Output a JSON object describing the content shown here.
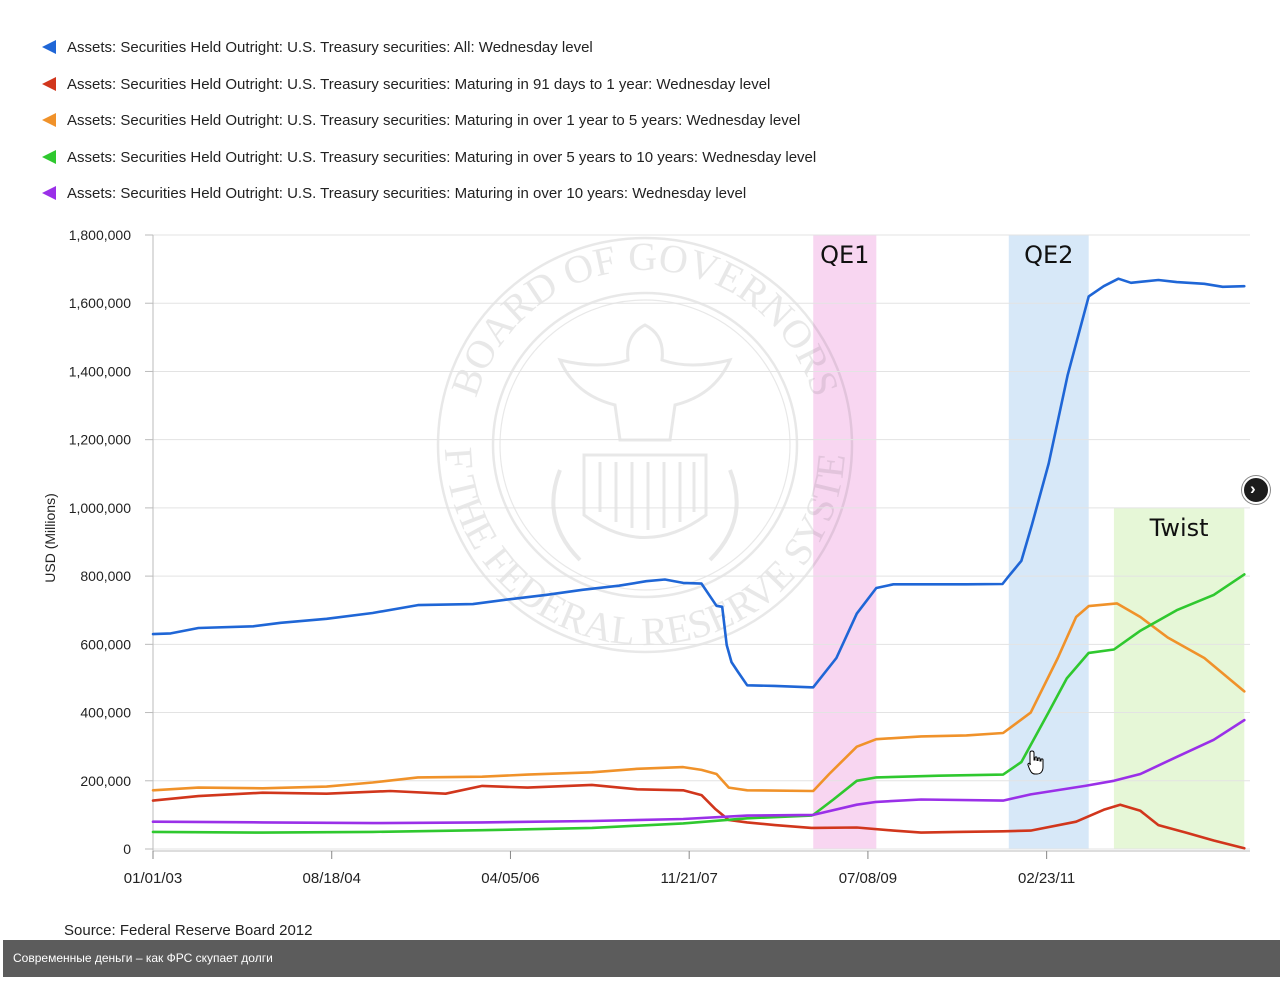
{
  "legend": [
    {
      "label": "Assets: Securities Held Outright: U.S. Treasury securities: All: Wednesday level",
      "color": "#1f66d6"
    },
    {
      "label": "Assets: Securities Held Outright: U.S. Treasury securities: Maturing in 91 days to 1 year: Wednesday level",
      "color": "#d1361c"
    },
    {
      "label": "Assets: Securities Held Outright: U.S. Treasury securities: Maturing in over 1 year to 5 years: Wednesday level",
      "color": "#f0922a"
    },
    {
      "label": "Assets: Securities Held Outright: U.S. Treasury securities: Maturing in over 5 years to 10 years: Wednesday level",
      "color": "#2fc82f"
    },
    {
      "label": "Assets: Securities Held Outright: U.S. Treasury securities: Maturing in over 10 years: Wednesday level",
      "color": "#9a30e8"
    }
  ],
  "source_text": "Source: Federal Reserve Board 2012",
  "caption": "Современные деньги – как ФРС скупает долги",
  "watermark": {
    "top_text": "BOARD OF GOVERNORS",
    "bottom_text": "OF THE FEDERAL RESERVE SYSTEM"
  },
  "chart_data": {
    "type": "line",
    "title": "",
    "xlabel": "",
    "ylabel": "USD (Millions)",
    "ylim": [
      0,
      1800000
    ],
    "xlim": [
      "2003-01-01",
      "2012-12-31"
    ],
    "grid": true,
    "legend_position": "top",
    "y_ticks": [
      {
        "value": 0,
        "label": "0"
      },
      {
        "value": 200000,
        "label": "200,000"
      },
      {
        "value": 400000,
        "label": "400,000"
      },
      {
        "value": 600000,
        "label": "600,000"
      },
      {
        "value": 800000,
        "label": "800,000"
      },
      {
        "value": 1000000,
        "label": "1,000,000"
      },
      {
        "value": 1200000,
        "label": "1,200,000"
      },
      {
        "value": 1400000,
        "label": "1,400,000"
      },
      {
        "value": 1600000,
        "label": "1,600,000"
      },
      {
        "value": 1800000,
        "label": "1,800,000"
      }
    ],
    "x_ticks": [
      {
        "date": "2003-01-01",
        "label": "01/01/03"
      },
      {
        "date": "2004-08-18",
        "label": "08/18/04"
      },
      {
        "date": "2006-04-05",
        "label": "04/05/06"
      },
      {
        "date": "2007-11-21",
        "label": "11/21/07"
      },
      {
        "date": "2009-07-08",
        "label": "07/08/09"
      },
      {
        "date": "2011-02-23",
        "label": "02/23/11"
      }
    ],
    "annotations": [
      {
        "label": "QE1",
        "start": "2009-01-07",
        "end": "2009-08-05",
        "y_top": 1800000,
        "color": "#f8d6f1"
      },
      {
        "label": "QE2",
        "start": "2010-10-20",
        "end": "2011-07-13",
        "y_top": 1800000,
        "color": "#d7e8f8"
      },
      {
        "label": "Twist",
        "start": "2011-10-05",
        "end": "2012-12-12",
        "y_top": 1000000,
        "color": "#e6f7d7"
      }
    ],
    "series": [
      {
        "name": "Assets: Securities Held Outright: U.S. Treasury securities: All: Wednesday level",
        "color": "#1f66d6",
        "points": [
          [
            "2003-01-01",
            630000
          ],
          [
            "2003-03-01",
            632000
          ],
          [
            "2003-06-01",
            648000
          ],
          [
            "2003-12-01",
            653000
          ],
          [
            "2004-03-01",
            663000
          ],
          [
            "2004-08-01",
            675000
          ],
          [
            "2005-01-01",
            692000
          ],
          [
            "2005-06-01",
            715000
          ],
          [
            "2005-12-01",
            718000
          ],
          [
            "2006-04-01",
            732000
          ],
          [
            "2006-08-01",
            745000
          ],
          [
            "2006-12-01",
            760000
          ],
          [
            "2007-04-01",
            772000
          ],
          [
            "2007-07-01",
            785000
          ],
          [
            "2007-09-01",
            790000
          ],
          [
            "2007-11-01",
            780000
          ],
          [
            "2008-01-01",
            778000
          ],
          [
            "2008-02-20",
            713000
          ],
          [
            "2008-03-10",
            710000
          ],
          [
            "2008-03-25",
            598000
          ],
          [
            "2008-04-10",
            548000
          ],
          [
            "2008-05-01",
            520000
          ],
          [
            "2008-06-01",
            480000
          ],
          [
            "2008-09-01",
            478000
          ],
          [
            "2008-12-31",
            474000
          ],
          [
            "2009-01-07",
            474000
          ],
          [
            "2009-03-25",
            560000
          ],
          [
            "2009-06-01",
            690000
          ],
          [
            "2009-08-05",
            765000
          ],
          [
            "2009-10-01",
            776000
          ],
          [
            "2010-06-01",
            776000
          ],
          [
            "2010-09-29",
            777000
          ],
          [
            "2010-10-20",
            800000
          ],
          [
            "2010-12-01",
            845000
          ],
          [
            "2011-01-05",
            950000
          ],
          [
            "2011-03-02",
            1130000
          ],
          [
            "2011-05-04",
            1390000
          ],
          [
            "2011-07-13",
            1620000
          ],
          [
            "2011-09-01",
            1650000
          ],
          [
            "2011-10-20",
            1672000
          ],
          [
            "2011-12-01",
            1660000
          ],
          [
            "2012-03-01",
            1668000
          ],
          [
            "2012-05-01",
            1662000
          ],
          [
            "2012-08-01",
            1657000
          ],
          [
            "2012-10-01",
            1648000
          ],
          [
            "2012-12-12",
            1650000
          ]
        ]
      },
      {
        "name": "Assets: Securities Held Outright: U.S. Treasury securities: Maturing in 91 days to 1 year: Wednesday level",
        "color": "#d1361c",
        "points": [
          [
            "2003-01-01",
            142000
          ],
          [
            "2003-06-01",
            155000
          ],
          [
            "2004-01-01",
            165000
          ],
          [
            "2004-08-01",
            162000
          ],
          [
            "2005-03-01",
            170000
          ],
          [
            "2005-09-01",
            162000
          ],
          [
            "2006-01-01",
            185000
          ],
          [
            "2006-06-01",
            180000
          ],
          [
            "2007-01-01",
            188000
          ],
          [
            "2007-06-01",
            175000
          ],
          [
            "2007-11-01",
            172000
          ],
          [
            "2008-01-01",
            158000
          ],
          [
            "2008-02-15",
            118000
          ],
          [
            "2008-04-01",
            85000
          ],
          [
            "2008-06-01",
            78000
          ],
          [
            "2008-09-01",
            70000
          ],
          [
            "2009-01-01",
            62000
          ],
          [
            "2009-06-01",
            63000
          ],
          [
            "2009-10-01",
            54000
          ],
          [
            "2010-01-01",
            48000
          ],
          [
            "2010-05-01",
            50000
          ],
          [
            "2010-10-01",
            52000
          ],
          [
            "2011-01-01",
            54000
          ],
          [
            "2011-06-01",
            80000
          ],
          [
            "2011-09-01",
            115000
          ],
          [
            "2011-10-26",
            130000
          ],
          [
            "2012-01-01",
            112000
          ],
          [
            "2012-03-01",
            70000
          ],
          [
            "2012-06-01",
            48000
          ],
          [
            "2012-09-01",
            25000
          ],
          [
            "2012-12-12",
            2000
          ]
        ]
      },
      {
        "name": "Assets: Securities Held Outright: U.S. Treasury securities: Maturing in over 1 year to 5 years: Wednesday level",
        "color": "#f0922a",
        "points": [
          [
            "2003-01-01",
            172000
          ],
          [
            "2003-06-01",
            180000
          ],
          [
            "2004-01-01",
            178000
          ],
          [
            "2004-08-01",
            183000
          ],
          [
            "2005-01-01",
            195000
          ],
          [
            "2005-06-01",
            210000
          ],
          [
            "2006-01-01",
            212000
          ],
          [
            "2006-06-01",
            218000
          ],
          [
            "2007-01-01",
            225000
          ],
          [
            "2007-06-01",
            235000
          ],
          [
            "2007-11-01",
            240000
          ],
          [
            "2008-01-01",
            232000
          ],
          [
            "2008-02-20",
            220000
          ],
          [
            "2008-04-01",
            180000
          ],
          [
            "2008-06-01",
            172000
          ],
          [
            "2008-12-31",
            170000
          ],
          [
            "2009-01-07",
            170000
          ],
          [
            "2009-03-01",
            220000
          ],
          [
            "2009-06-01",
            300000
          ],
          [
            "2009-08-05",
            322000
          ],
          [
            "2010-01-01",
            330000
          ],
          [
            "2010-06-01",
            333000
          ],
          [
            "2010-10-01",
            340000
          ],
          [
            "2011-01-01",
            400000
          ],
          [
            "2011-04-01",
            560000
          ],
          [
            "2011-06-01",
            680000
          ],
          [
            "2011-07-13",
            712000
          ],
          [
            "2011-10-15",
            720000
          ],
          [
            "2012-01-01",
            680000
          ],
          [
            "2012-04-01",
            620000
          ],
          [
            "2012-08-01",
            560000
          ],
          [
            "2012-12-12",
            462000
          ]
        ]
      },
      {
        "name": "Assets: Securities Held Outright: U.S. Treasury securities: Maturing in over 5 years to 10 years: Wednesday level",
        "color": "#2fc82f",
        "points": [
          [
            "2003-01-01",
            50000
          ],
          [
            "2004-01-01",
            48000
          ],
          [
            "2005-01-01",
            50000
          ],
          [
            "2006-01-01",
            55000
          ],
          [
            "2007-01-01",
            62000
          ],
          [
            "2007-11-01",
            75000
          ],
          [
            "2008-06-01",
            90000
          ],
          [
            "2008-12-31",
            98000
          ],
          [
            "2009-01-07",
            100000
          ],
          [
            "2009-03-15",
            145000
          ],
          [
            "2009-06-01",
            200000
          ],
          [
            "2009-08-05",
            210000
          ],
          [
            "2010-03-01",
            215000
          ],
          [
            "2010-10-01",
            218000
          ],
          [
            "2010-12-01",
            255000
          ],
          [
            "2011-03-01",
            400000
          ],
          [
            "2011-05-01",
            500000
          ],
          [
            "2011-07-13",
            575000
          ],
          [
            "2011-10-05",
            585000
          ],
          [
            "2012-01-01",
            640000
          ],
          [
            "2012-05-01",
            700000
          ],
          [
            "2012-09-01",
            745000
          ],
          [
            "2012-12-12",
            805000
          ]
        ]
      },
      {
        "name": "Assets: Securities Held Outright: U.S. Treasury securities: Maturing in over 10 years: Wednesday level",
        "color": "#9a30e8",
        "points": [
          [
            "2003-01-01",
            80000
          ],
          [
            "2004-01-01",
            78000
          ],
          [
            "2005-01-01",
            76000
          ],
          [
            "2006-01-01",
            78000
          ],
          [
            "2007-01-01",
            82000
          ],
          [
            "2007-11-01",
            88000
          ],
          [
            "2008-06-01",
            98000
          ],
          [
            "2009-01-07",
            100000
          ],
          [
            "2009-06-01",
            130000
          ],
          [
            "2009-08-05",
            138000
          ],
          [
            "2010-01-01",
            145000
          ],
          [
            "2010-10-01",
            142000
          ],
          [
            "2011-01-01",
            160000
          ],
          [
            "2011-07-01",
            185000
          ],
          [
            "2011-10-05",
            200000
          ],
          [
            "2012-01-01",
            220000
          ],
          [
            "2012-05-01",
            270000
          ],
          [
            "2012-09-01",
            320000
          ],
          [
            "2012-12-12",
            378000
          ]
        ]
      }
    ]
  }
}
